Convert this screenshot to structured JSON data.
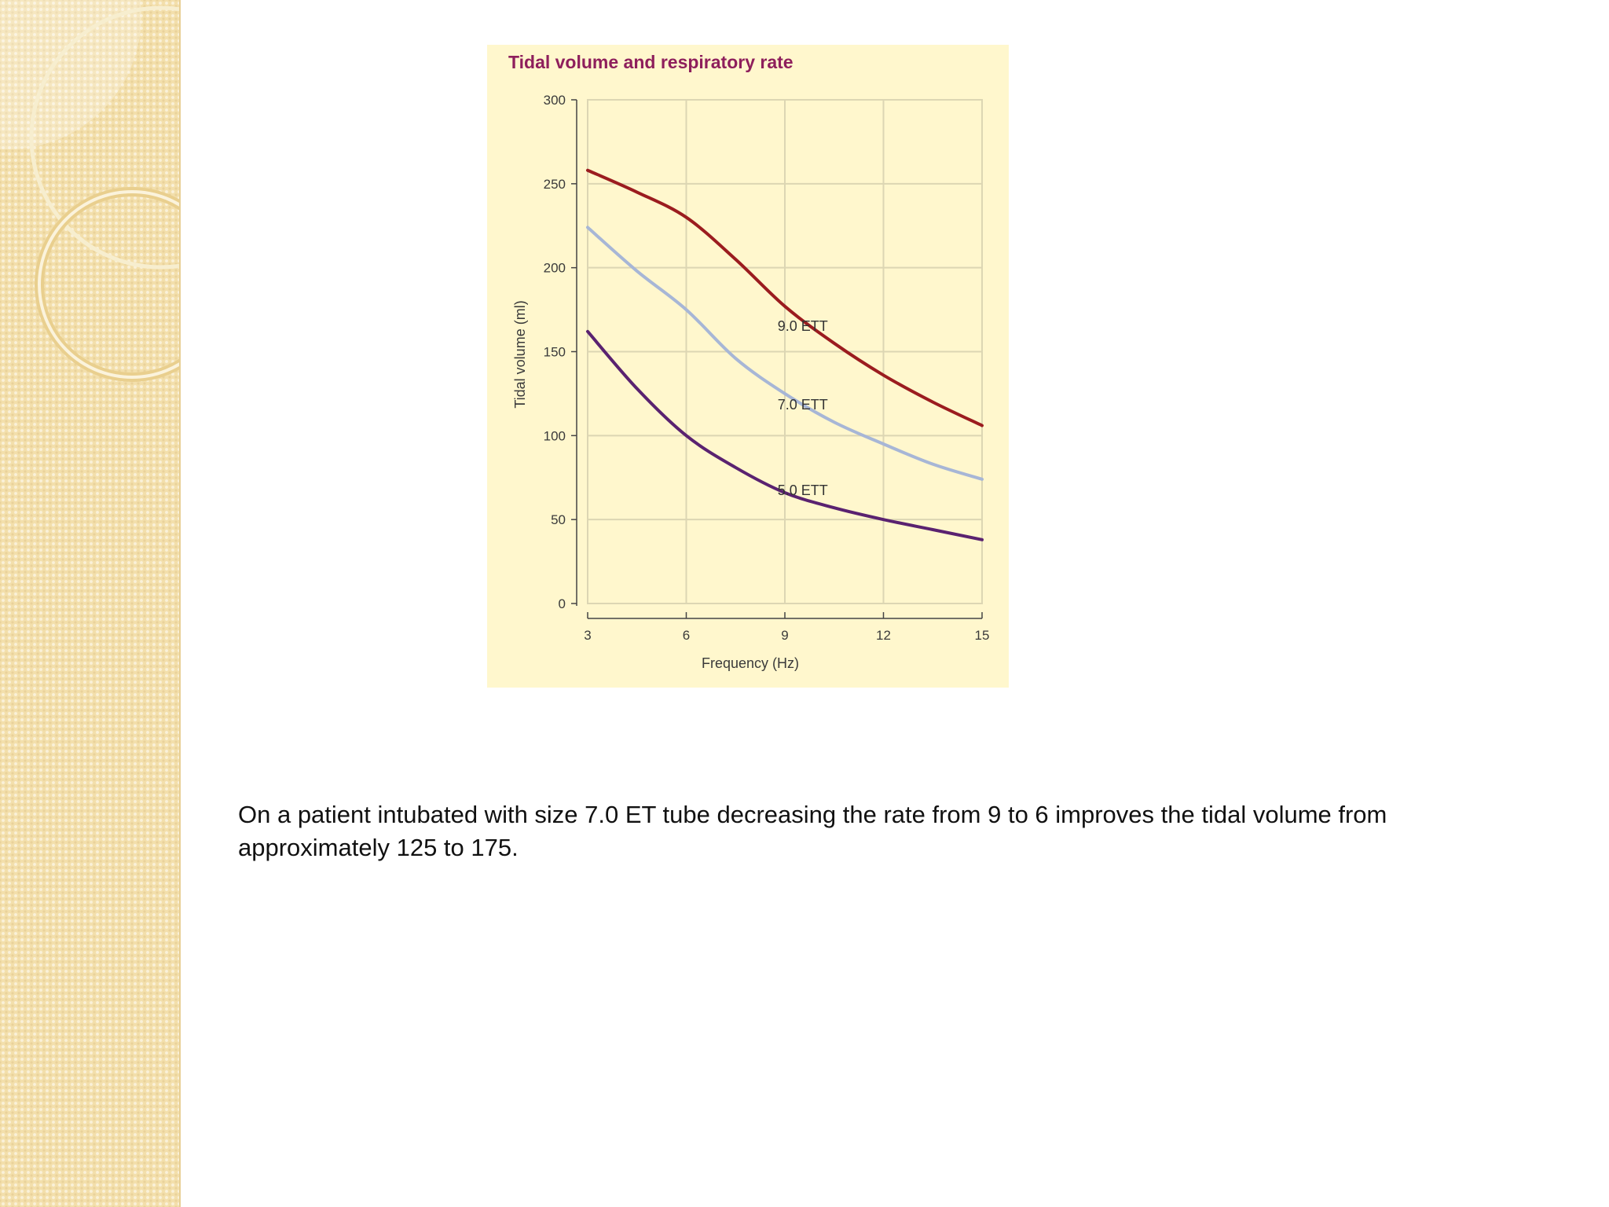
{
  "slide": {
    "caption": "On a patient intubated with size 7.0 ET tube decreasing the rate from 9 to 6 improves the tidal volume from approximately 125 to 175."
  },
  "colors": {
    "sidebar_bg": "#f3dfab",
    "chart_bg": "#fff7cd",
    "title": "#8e1f5c",
    "series_9": "#9b1c1f",
    "series_7": "#a7b6d6",
    "series_5": "#5a2270",
    "grid": "#dcd6b3"
  },
  "chart_data": {
    "type": "line",
    "title": "Tidal volume and respiratory rate",
    "xlabel": "Frequency (Hz)",
    "ylabel": "Tidal volume (ml)",
    "xlim": [
      3,
      15
    ],
    "ylim": [
      0,
      300
    ],
    "xticks": [
      "3",
      "6",
      "9",
      "12",
      "15"
    ],
    "yticks": [
      "0",
      "50",
      "100",
      "150",
      "200",
      "250",
      "300"
    ],
    "grid": true,
    "series": [
      {
        "name": "9.0 ETT",
        "x": [
          3,
          4.5,
          6,
          7.5,
          9,
          10.5,
          12,
          13.5,
          15
        ],
        "y": [
          258,
          245,
          230,
          205,
          177,
          155,
          136,
          120,
          106
        ],
        "color_key": "series_9"
      },
      {
        "name": "7.0 ETT",
        "x": [
          3,
          4.5,
          6,
          7.5,
          9,
          10.5,
          12,
          13.5,
          15
        ],
        "y": [
          224,
          198,
          175,
          146,
          125,
          108,
          95,
          83,
          74
        ],
        "color_key": "series_7"
      },
      {
        "name": "5.0 ETT",
        "x": [
          3,
          4.5,
          6,
          7.5,
          9,
          10.5,
          12,
          13.5,
          15
        ],
        "y": [
          162,
          128,
          100,
          81,
          66,
          57,
          50,
          44,
          38
        ],
        "color_key": "series_5"
      }
    ]
  }
}
